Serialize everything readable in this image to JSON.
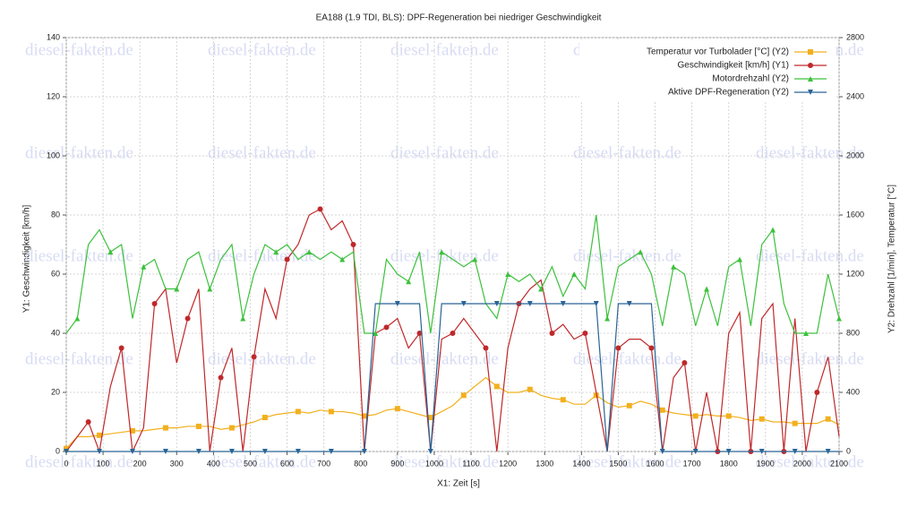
{
  "chart_data": {
    "type": "line",
    "title": "EA188 (1.9 TDI, BLS): DPF-Regeneration bei niedriger Geschwindigkeit",
    "watermark": "diesel-fakten.de",
    "xlabel": "X1: Zeit [s]",
    "ylabel": "Y1: Geschwindigkeit [km/h]",
    "y2label": "Y2: Drehzahl [1/min], Temperatur [°C]",
    "x": [
      0,
      30,
      60,
      90,
      120,
      150,
      180,
      210,
      240,
      270,
      300,
      330,
      360,
      390,
      420,
      450,
      480,
      510,
      540,
      570,
      600,
      630,
      660,
      690,
      720,
      750,
      780,
      810,
      840,
      870,
      900,
      930,
      960,
      990,
      1020,
      1050,
      1080,
      1110,
      1140,
      1170,
      1200,
      1230,
      1260,
      1290,
      1320,
      1350,
      1380,
      1410,
      1440,
      1470,
      1500,
      1530,
      1560,
      1590,
      1620,
      1650,
      1680,
      1710,
      1740,
      1770,
      1800,
      1830,
      1860,
      1890,
      1920,
      1950,
      1980,
      2010,
      2040,
      2070,
      2100
    ],
    "xlim": [
      0,
      2100
    ],
    "xticks": [
      0,
      100,
      200,
      300,
      400,
      500,
      600,
      700,
      800,
      900,
      1000,
      1100,
      1200,
      1300,
      1400,
      1500,
      1600,
      1700,
      1800,
      1900,
      2000,
      2100
    ],
    "ylim": [
      0,
      140
    ],
    "yticks": [
      0,
      20,
      40,
      60,
      80,
      100,
      120,
      140
    ],
    "y2lim": [
      0,
      2800
    ],
    "y2ticks": [
      0,
      400,
      800,
      1200,
      1600,
      2000,
      2400,
      2800
    ],
    "grid": true,
    "legend": "upper right",
    "series": [
      {
        "name": "Temperatur vor Turbolader [°C] (Y2)",
        "color": "#f2b01e",
        "marker": "square",
        "axis": "y2",
        "values": [
          20,
          100,
          100,
          110,
          120,
          130,
          140,
          140,
          150,
          160,
          160,
          170,
          170,
          170,
          150,
          160,
          180,
          200,
          230,
          250,
          260,
          270,
          260,
          280,
          270,
          270,
          260,
          240,
          250,
          280,
          290,
          270,
          250,
          230,
          270,
          310,
          380,
          440,
          500,
          440,
          400,
          400,
          420,
          380,
          360,
          350,
          320,
          320,
          380,
          330,
          300,
          310,
          340,
          320,
          280,
          260,
          250,
          240,
          250,
          240,
          240,
          230,
          210,
          220,
          200,
          200,
          190,
          190,
          190,
          220,
          180
        ]
      },
      {
        "name": "Geschwindigkeit [km/h] (Y1)",
        "color": "#c0282a",
        "marker": "circle",
        "values": [
          0,
          5,
          10,
          0,
          22,
          35,
          0,
          8,
          50,
          55,
          30,
          45,
          55,
          0,
          25,
          35,
          0,
          32,
          55,
          45,
          65,
          70,
          80,
          82,
          75,
          78,
          70,
          0,
          40,
          42,
          45,
          35,
          40,
          0,
          38,
          40,
          45,
          40,
          35,
          0,
          35,
          50,
          55,
          58,
          40,
          43,
          38,
          40,
          20,
          0,
          35,
          38,
          38,
          35,
          0,
          25,
          30,
          0,
          20,
          0,
          40,
          47,
          0,
          45,
          50,
          0,
          45,
          0,
          20,
          32,
          5
        ]
      },
      {
        "name": "Motordrehzahl (Y2)",
        "color": "#3cc13c",
        "marker": "triangle",
        "axis": "y2",
        "values": [
          800,
          900,
          1400,
          1500,
          1350,
          1400,
          900,
          1250,
          1300,
          1100,
          1100,
          1300,
          1350,
          1100,
          1300,
          1400,
          900,
          1200,
          1400,
          1350,
          1400,
          1300,
          1350,
          1300,
          1350,
          1300,
          1350,
          800,
          800,
          1300,
          1200,
          1150,
          1350,
          800,
          1350,
          1300,
          1250,
          1300,
          1000,
          900,
          1200,
          1150,
          1200,
          1100,
          1250,
          1050,
          1200,
          1100,
          1600,
          900,
          1250,
          1300,
          1350,
          1200,
          850,
          1250,
          1200,
          850,
          1100,
          850,
          1250,
          1300,
          850,
          1400,
          1500,
          1000,
          800,
          800,
          800,
          1200,
          900
        ]
      },
      {
        "name": "Aktive DPF-Regeneration (Y2)",
        "color": "#2a6496",
        "marker": "triangle-down",
        "axis": "y2",
        "values": [
          0,
          0,
          0,
          0,
          0,
          0,
          0,
          0,
          0,
          0,
          0,
          0,
          0,
          0,
          0,
          0,
          0,
          0,
          0,
          0,
          0,
          0,
          0,
          0,
          0,
          0,
          0,
          0,
          1000,
          1000,
          1000,
          1000,
          1000,
          0,
          1000,
          1000,
          1000,
          1000,
          1000,
          1000,
          1000,
          1000,
          1000,
          1000,
          1000,
          1000,
          1000,
          1000,
          1000,
          0,
          1000,
          1000,
          1000,
          1000,
          0,
          0,
          0,
          0,
          0,
          0,
          0,
          0,
          0,
          0,
          0,
          0,
          0,
          0,
          0,
          0,
          0
        ]
      }
    ]
  }
}
